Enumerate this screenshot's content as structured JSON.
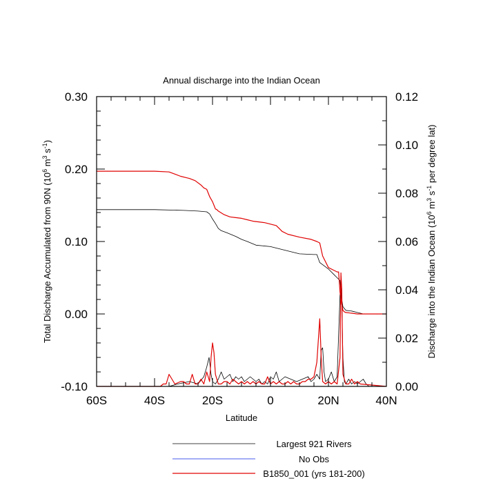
{
  "chart_data": {
    "type": "line",
    "title": "Annual discharge into the Indian Ocean",
    "xlabel": "Latitude",
    "ylabel_left": "Total Discharge Accumulated from 90N (10^6 m^3 s^-1)",
    "ylabel_right": "Discharge into the Indian Ocean (10^6 m^3 s^-1 per degree lat)",
    "xlim": [
      -60,
      40
    ],
    "ylim_left": [
      -0.1,
      0.3
    ],
    "ylim_right": [
      0.0,
      0.12
    ],
    "x_tick_labels": [
      {
        "value": -60,
        "label": "60S"
      },
      {
        "value": -40,
        "label": "40S"
      },
      {
        "value": -20,
        "label": "20S"
      },
      {
        "value": 0,
        "label": "0"
      },
      {
        "value": 20,
        "label": "20N"
      },
      {
        "value": 40,
        "label": "40N"
      }
    ],
    "y_left_tick_labels": [
      {
        "value": 0.3,
        "label": "0.30"
      },
      {
        "value": 0.2,
        "label": "0.20"
      },
      {
        "value": 0.1,
        "label": "0.10"
      },
      {
        "value": 0.0,
        "label": "0.00"
      },
      {
        "value": -0.1,
        "label": "-0.10"
      }
    ],
    "y_right_tick_labels": [
      {
        "value": 0.12,
        "label": "0.12"
      },
      {
        "value": 0.1,
        "label": "0.10"
      },
      {
        "value": 0.08,
        "label": "0.08"
      },
      {
        "value": 0.06,
        "label": "0.06"
      },
      {
        "value": 0.04,
        "label": "0.04"
      },
      {
        "value": 0.02,
        "label": "0.02"
      },
      {
        "value": 0.0,
        "label": "0.00"
      }
    ],
    "grid": false,
    "legend_position": "bottom",
    "series": [
      {
        "name": "Largest 921 Rivers",
        "color": "#000000",
        "axis": "left",
        "x": [
          -60,
          -40,
          -30,
          -25,
          -22,
          -21,
          -20,
          -19,
          -18,
          -17,
          -15,
          -12,
          -10,
          -8,
          -5,
          0,
          2,
          5,
          10,
          15,
          16,
          17,
          18,
          20,
          22,
          23,
          24,
          24.3,
          24.6,
          25,
          26,
          28,
          30,
          32,
          40
        ],
        "y": [
          0.144,
          0.144,
          0.143,
          0.142,
          0.141,
          0.138,
          0.131,
          0.125,
          0.118,
          0.115,
          0.112,
          0.107,
          0.103,
          0.1,
          0.095,
          0.093,
          0.091,
          0.088,
          0.083,
          0.082,
          0.082,
          0.071,
          0.068,
          0.062,
          0.054,
          0.05,
          0.046,
          0.03,
          0.02,
          0.01,
          0.005,
          0.004,
          0.002,
          0.0,
          0.0
        ]
      },
      {
        "name": "Largest 921 Rivers",
        "color": "#000000",
        "axis": "right",
        "x": [
          -60,
          -35,
          -32,
          -28,
          -25,
          -23,
          -22,
          -21.2,
          -20.5,
          -20,
          -19,
          -18,
          -17,
          -16,
          -15,
          -14,
          -13,
          -12,
          -11,
          -10,
          -9,
          -8,
          -7,
          -6,
          -5,
          -4,
          -3,
          -2,
          -1,
          0,
          1,
          2,
          3,
          4,
          5,
          7,
          9,
          11,
          13,
          14,
          15,
          16,
          17,
          17.5,
          18,
          18.5,
          19,
          20,
          21,
          22,
          23,
          24,
          24.5,
          25,
          25.5,
          26,
          27,
          28,
          29,
          30,
          31,
          32,
          33,
          34,
          40
        ],
        "y": [
          0,
          0,
          0.001,
          0.002,
          0.001,
          0.004,
          0.008,
          0.012,
          0.005,
          0.002,
          0.001,
          0.003,
          0.006,
          0.003,
          0.004,
          0.005,
          0.002,
          0.004,
          0.003,
          0.004,
          0.002,
          0.003,
          0.004,
          0.003,
          0.002,
          0.003,
          0.001,
          0.002,
          0.001,
          0.004,
          0.003,
          0.006,
          0.002,
          0.003,
          0.004,
          0.003,
          0.002,
          0.003,
          0.004,
          0.002,
          0.003,
          0.005,
          0.003,
          0.015,
          0.016,
          0.006,
          0.002,
          0.003,
          0.006,
          0.002,
          0.004,
          0.038,
          0.041,
          0.012,
          0.002,
          0.001,
          0.003,
          0.001,
          0.002,
          0.001,
          0.002,
          0.003,
          0.001,
          0,
          0
        ]
      },
      {
        "name": "No Obs",
        "color": "#6b7cf0",
        "axis": "left",
        "x": [],
        "y": []
      },
      {
        "name": "B1850_001 (yrs 181-200)",
        "color": "#e00000",
        "axis": "left",
        "x": [
          -60,
          -40,
          -35,
          -33,
          -31,
          -29,
          -28,
          -26,
          -24,
          -23,
          -22,
          -21,
          -20,
          -19.5,
          -19,
          -18.5,
          -18,
          -16,
          -14,
          -12,
          -10,
          -8,
          -6,
          -4,
          -2,
          0,
          2,
          3,
          4,
          6,
          10,
          14,
          16,
          17,
          18,
          20,
          22,
          23,
          23.5,
          24,
          24.5,
          25,
          25.5,
          26,
          28,
          30,
          40
        ],
        "y": [
          0.197,
          0.197,
          0.196,
          0.193,
          0.19,
          0.188,
          0.187,
          0.184,
          0.178,
          0.174,
          0.172,
          0.162,
          0.155,
          0.15,
          0.145,
          0.144,
          0.142,
          0.137,
          0.134,
          0.133,
          0.132,
          0.13,
          0.128,
          0.127,
          0.126,
          0.124,
          0.122,
          0.118,
          0.114,
          0.11,
          0.106,
          0.103,
          0.1,
          0.098,
          0.08,
          0.064,
          0.06,
          0.058,
          0.058,
          0.03,
          0.015,
          0.005,
          0.003,
          0.002,
          0.001,
          0.0,
          0.0
        ]
      },
      {
        "name": "B1850_001 (yrs 181-200)",
        "color": "#e00000",
        "axis": "right",
        "x": [
          -60,
          -38,
          -37,
          -36,
          -35,
          -33,
          -31,
          -30,
          -29,
          -28,
          -27,
          -26,
          -25,
          -24,
          -23,
          -22,
          -21,
          -20.5,
          -20,
          -19.5,
          -19,
          -18,
          -17,
          -16,
          -15,
          -14,
          -13,
          -12,
          -11,
          -10,
          -9,
          -8,
          -7,
          -6,
          -5,
          -4,
          -3,
          -2,
          -1,
          0,
          1,
          2,
          3,
          4,
          5,
          6,
          7,
          8,
          9,
          10,
          11,
          12,
          13,
          14,
          15,
          16,
          17,
          17.5,
          18,
          19,
          20,
          21,
          22,
          23,
          24,
          24.3,
          24.6,
          25,
          26,
          27,
          28,
          29,
          30,
          31,
          40
        ],
        "y": [
          0,
          0,
          0.001,
          0.001,
          0.005,
          0.001,
          0.002,
          0.002,
          0.001,
          0.001,
          0.005,
          0.001,
          0.001,
          0.003,
          0.001,
          0.006,
          0.002,
          0.012,
          0.018,
          0.014,
          0.005,
          0.001,
          0.001,
          0.002,
          0.002,
          0.001,
          0.003,
          0.002,
          0.001,
          0.002,
          0.001,
          0.002,
          0.001,
          0.002,
          0.001,
          0.002,
          0.001,
          0.001,
          0.004,
          0.001,
          0.002,
          0.001,
          0.002,
          0.001,
          0.001,
          0.002,
          0.001,
          0.002,
          0.001,
          0.001,
          0.002,
          0.002,
          0.003,
          0.003,
          0.004,
          0.01,
          0.028,
          0.012,
          0.002,
          0.001,
          0.002,
          0.001,
          0.002,
          0.001,
          0.012,
          0.047,
          0.04,
          0.005,
          0.001,
          0.001,
          0.003,
          0.001,
          0.002,
          0.001,
          0
        ]
      }
    ],
    "legend": [
      {
        "label": "Largest 921 Rivers",
        "color": "#000000"
      },
      {
        "label": "No Obs",
        "color": "#6b7cf0"
      },
      {
        "label": "B1850_001 (yrs 181-200)",
        "color": "#e00000"
      }
    ]
  }
}
